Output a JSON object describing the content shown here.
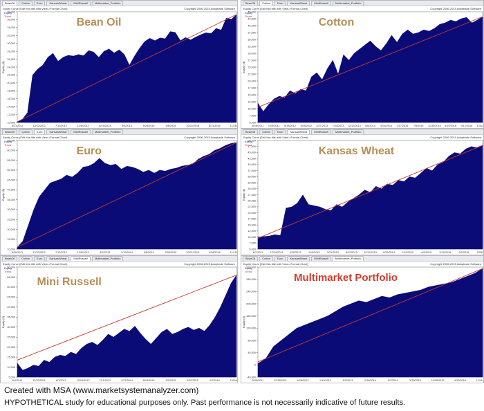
{
  "tabs": [
    "BeanOil",
    "Cotton",
    "Euro",
    "KansasWheat",
    "MiniRussell",
    "Multimarket_Portfolio"
  ],
  "window": {
    "subtitle": "Equity Curve (Edit this title with View->Format Chart)",
    "copyright": "Copyright 2006-2015 Adaptrade Software",
    "legend_equity": "Equity",
    "legend_trend": "Trend"
  },
  "colors": {
    "equity_fill": "#0b0b78",
    "trend_line": "#c0392b",
    "title_tan": "#b68f58",
    "title_red": "#d23c2c"
  },
  "chart_data": [
    {
      "type": "area",
      "title": "Bean Oil",
      "ylabel": "Equity ($)",
      "ylim": [
        10000,
        38000
      ],
      "y_ticks": [
        "38,000",
        "36,000",
        "34,000",
        "32,000",
        "30,000",
        "28,000",
        "26,000",
        "24,000",
        "22,000",
        "20,000",
        "18,000",
        "16,000",
        "14,000",
        "12,000",
        "10,000"
      ],
      "x_ticks": [
        "5/21/2011",
        "12/22/2011",
        "7/12/2012",
        "1/28/2013",
        "8/15/2013",
        "3/4/2014",
        "9/25/2014",
        "4/8/2015",
        "10/22/2015",
        "5/11/2016",
        "11/28/2016"
      ],
      "series": [
        {
          "name": "Equity",
          "values": [
            10200,
            10800,
            12500,
            22000,
            23500,
            24500,
            26500,
            27500,
            25500,
            26500,
            27000,
            26800,
            27200,
            26900,
            28200,
            27800,
            26500,
            28000,
            28600,
            27600,
            28400,
            27200,
            24500,
            26800,
            28800,
            30500,
            31300,
            30700,
            31400,
            31200,
            33000,
            32800,
            30700,
            31500,
            30900,
            31600,
            32200,
            32700,
            32500,
            33800,
            33400,
            36400,
            36100,
            37300
          ]
        },
        {
          "name": "Trend",
          "values": [
            10200,
            37300
          ]
        }
      ]
    },
    {
      "type": "area",
      "title": "Cotton",
      "ylabel": "Equity ($)",
      "ylim": [
        5000,
        45000
      ],
      "y_ticks": [
        "45,000",
        "42,500",
        "40,000",
        "37,500",
        "35,000",
        "32,500",
        "30,000",
        "27,500",
        "25,000",
        "22,500",
        "20,000",
        "17,500",
        "15,000",
        "12,500",
        "10,000",
        "7,500",
        "5,000"
      ],
      "x_ticks": [
        "8/16/2011",
        "12/5/2011",
        "5/15/2012",
        "10/8/2012",
        "2/27/2013",
        "7/24/2013",
        "12/12/2013",
        "5/6/2014",
        "9/26/2014",
        "2/17/2015",
        "7/8/2015",
        "11/30/2015",
        "4/19/2016",
        "9/12/2016",
        "1/31/2017"
      ],
      "series": [
        {
          "name": "Equity",
          "values": [
            12000,
            9000,
            11500,
            13500,
            14500,
            14000,
            16500,
            15500,
            17000,
            16500,
            21500,
            23000,
            20500,
            24500,
            27500,
            22500,
            29500,
            27500,
            30000,
            31500,
            33000,
            34500,
            32500,
            31000,
            33500,
            36500,
            34000,
            37000,
            38500,
            37000,
            37500,
            38500,
            38000,
            39000,
            40500,
            41000,
            42000,
            41500,
            42500,
            43000,
            41000,
            42000,
            43200
          ]
        },
        {
          "name": "Trend",
          "values": [
            10500,
            43200
          ]
        }
      ]
    },
    {
      "type": "area",
      "title": "Euro",
      "ylabel": "Equity ($)",
      "ylim": [
        10000,
        65000
      ],
      "y_ticks": [
        "65,000",
        "60,000",
        "55,000",
        "50,000",
        "45,000",
        "40,000",
        "35,000",
        "30,000",
        "25,000",
        "20,000",
        "15,000",
        "10,000"
      ],
      "x_ticks": [
        "5/26/2011",
        "12/22/2011",
        "7/12/2012",
        "1/28/2013",
        "8/2/2013",
        "2/19/2014",
        "9/8/2014",
        "3/30/2015",
        "10/21/2015",
        "4/28/2016",
        "11/15/2016"
      ],
      "series": [
        {
          "name": "Equity",
          "values": [
            11000,
            14000,
            22000,
            30000,
            36500,
            40000,
            43500,
            44500,
            45500,
            47500,
            46500,
            48500,
            51500,
            52000,
            53500,
            56000,
            53500,
            52500,
            53000,
            50500,
            52000,
            51500,
            50500,
            49000,
            50000,
            48500,
            50000,
            49500,
            50500,
            51000,
            52000,
            52500,
            53000,
            55500,
            57000,
            58000,
            60000,
            61000,
            62500,
            63500,
            64000
          ]
        },
        {
          "name": "Trend",
          "values": [
            11000,
            64000
          ]
        }
      ]
    },
    {
      "type": "area",
      "title": "Kansas Wheat",
      "ylabel": "Equity ($)",
      "ylim": [
        5000,
        50000
      ],
      "y_ticks": [
        "50,000",
        "47,500",
        "45,000",
        "42,500",
        "40,000",
        "37,500",
        "35,000",
        "32,500",
        "30,000",
        "27,500",
        "25,000",
        "22,500",
        "20,000",
        "17,500",
        "15,000",
        "12,500",
        "10,000",
        "7,500",
        "5,000"
      ],
      "x_ticks": [
        "8/7/2011",
        "12/19/2011",
        "4/20/2012",
        "11/9/2012",
        "3/31/2013",
        "8/12/2013",
        "12/11/2013",
        "6/29/2014",
        "1/15/2015",
        "6/3/2015",
        "2/19/2016",
        "9/2/2016",
        "3/25/2017"
      ],
      "series": [
        {
          "name": "Equity",
          "values": [
            10000,
            10200,
            10400,
            11000,
            10700,
            22000,
            22500,
            24000,
            27500,
            23500,
            23000,
            22500,
            21500,
            21000,
            23500,
            22500,
            24500,
            26000,
            27500,
            29500,
            28500,
            31000,
            30000,
            32000,
            31500,
            33500,
            33000,
            35000,
            34500,
            36500,
            38500,
            37500,
            40000,
            41000,
            43500,
            45000,
            44500,
            46500,
            47500,
            47000,
            48000
          ]
        },
        {
          "name": "Trend",
          "values": [
            9500,
            48000
          ]
        }
      ]
    },
    {
      "type": "area",
      "title": "Mini Russell",
      "ylabel": "Equity ($)",
      "ylim": [
        5000,
        60000
      ],
      "y_ticks": [
        "60,000",
        "55,000",
        "50,000",
        "45,000",
        "40,000",
        "35,000",
        "30,000",
        "25,000",
        "20,000",
        "15,000",
        "10,000",
        "5,000"
      ],
      "x_ticks": [
        "5/4/2011",
        "11/20/2011",
        "6/7/2012",
        "12/24/2012",
        "7/11/2013",
        "1/27/2014",
        "8/15/2014",
        "3/3/2015",
        "9/20/2015",
        "4/7/2016",
        "10/24/2016"
      ],
      "series": [
        {
          "name": "Equity",
          "values": [
            12000,
            8500,
            9500,
            11000,
            10500,
            13500,
            12500,
            15000,
            16000,
            15500,
            17500,
            16500,
            19500,
            21500,
            22500,
            21000,
            23500,
            26500,
            25000,
            27000,
            29000,
            28000,
            30500,
            27000,
            24000,
            21500,
            24500,
            27500,
            29000,
            26500,
            27500,
            29000,
            30000,
            28500,
            29500,
            28000,
            31000,
            35000,
            40000,
            46000,
            52000,
            56000
          ]
        },
        {
          "name": "Trend",
          "values": [
            13500,
            56000
          ]
        }
      ]
    },
    {
      "type": "area",
      "title": "Multimarket Portfolio",
      "ylabel": "Equity ($)",
      "ylim": [
        -40000,
        320000
      ],
      "y_ticks": [
        "320,000",
        "280,000",
        "240,000",
        "200,000",
        "160,000",
        "120,000",
        "80,000",
        "40,000",
        "0",
        "-40,000"
      ],
      "x_ticks": [
        "5/25/2011",
        "12/18/2011",
        "6/28/2012",
        "1/19/2013",
        "8/3/2013",
        "2/18/2014",
        "9/7/2014",
        "3/29/2015",
        "10/15/2015",
        "4/25/2016",
        "11/11/2016"
      ],
      "series": [
        {
          "name": "Equity",
          "values": [
            5000,
            20000,
            60000,
            80000,
            100000,
            120000,
            130000,
            140000,
            150000,
            160000,
            175000,
            190000,
            200000,
            210000,
            205000,
            215000,
            225000,
            220000,
            230000,
            235000,
            240000,
            245000,
            255000,
            260000,
            265000,
            270000,
            280000,
            290000,
            300000,
            315000
          ]
        },
        {
          "name": "Trend",
          "values": [
            10000,
            315000
          ]
        }
      ]
    }
  ],
  "footer": {
    "line1": "Created with MSA (www.marketsystemanalyzer.com)",
    "line2": "HYPOTHETICAL study for educational purposes only.  Past performance is not necessarily indicative of future results."
  }
}
